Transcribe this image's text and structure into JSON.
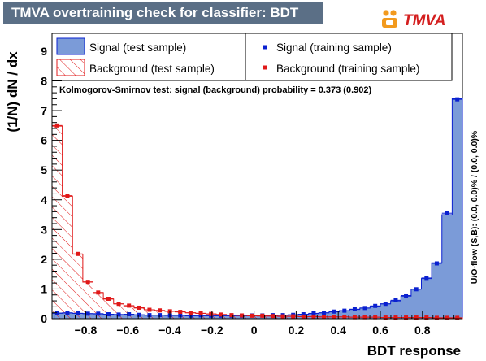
{
  "header": {
    "title": "TMVA overtraining check for classifier: BDT",
    "logo_text": "TMVA"
  },
  "legend": {
    "signal_test": "Signal (test sample)",
    "background_test": "Background (test sample)",
    "signal_train": "Signal (training sample)",
    "background_train": "Background (training sample)"
  },
  "ks_text": "Kolmogorov-Smirnov test: signal (background) probability = 0.373 (0.902)",
  "overflow_text": "U/O-flow (S,B): (0.0, 0.0)% / (0.0, 0.0)%",
  "colors": {
    "signal_fill": "#7b9bd8",
    "signal_line": "#0a20d0",
    "background": "#e01818",
    "title_bg": "#5b6f86"
  },
  "chart_data": {
    "type": "bar",
    "xlabel": "BDT response",
    "ylabel": "(1/N) dN  /  dx",
    "xlim": [
      -0.96,
      0.99
    ],
    "ylim": [
      0,
      9.6
    ],
    "x_ticks": [
      -0.8,
      -0.6,
      -0.4,
      -0.2,
      0,
      0.2,
      0.4,
      0.6,
      0.8
    ],
    "x_tick_labels": [
      "−0.8",
      "−0.6",
      "−0.4",
      "−0.2",
      "0",
      "0.2",
      "0.4",
      "0.6",
      "0.8"
    ],
    "y_ticks": [
      0,
      1,
      2,
      3,
      4,
      5,
      6,
      7,
      8,
      9
    ],
    "n_bins": 40,
    "series": [
      {
        "name": "Signal (test sample)",
        "style": "filled",
        "values": [
          0.18,
          0.19,
          0.18,
          0.17,
          0.16,
          0.15,
          0.14,
          0.14,
          0.13,
          0.12,
          0.12,
          0.11,
          0.11,
          0.1,
          0.1,
          0.1,
          0.1,
          0.1,
          0.1,
          0.1,
          0.11,
          0.11,
          0.12,
          0.13,
          0.15,
          0.17,
          0.2,
          0.23,
          0.27,
          0.31,
          0.36,
          0.42,
          0.5,
          0.6,
          0.76,
          1.0,
          1.35,
          1.88,
          3.5,
          7.4
        ]
      },
      {
        "name": "Background (test sample)",
        "style": "hatched",
        "values": [
          6.48,
          4.12,
          2.17,
          1.23,
          0.88,
          0.66,
          0.5,
          0.43,
          0.36,
          0.3,
          0.27,
          0.25,
          0.23,
          0.2,
          0.18,
          0.16,
          0.14,
          0.12,
          0.11,
          0.1,
          0.09,
          0.09,
          0.08,
          0.08,
          0.07,
          0.07,
          0.06,
          0.06,
          0.06,
          0.05,
          0.05,
          0.05,
          0.04,
          0.04,
          0.04,
          0.04,
          0.04,
          0.03,
          0.03,
          0.03
        ]
      },
      {
        "name": "Signal (training sample)",
        "style": "points",
        "values": [
          0.19,
          0.2,
          0.18,
          0.17,
          0.17,
          0.15,
          0.14,
          0.15,
          0.13,
          0.12,
          0.12,
          0.11,
          0.11,
          0.1,
          0.11,
          0.1,
          0.1,
          0.1,
          0.1,
          0.11,
          0.11,
          0.12,
          0.12,
          0.13,
          0.15,
          0.18,
          0.2,
          0.24,
          0.27,
          0.32,
          0.36,
          0.43,
          0.5,
          0.62,
          0.78,
          0.99,
          1.37,
          1.86,
          3.55,
          7.38
        ]
      },
      {
        "name": "Background (training sample)",
        "style": "points",
        "values": [
          6.5,
          4.14,
          2.18,
          1.24,
          0.88,
          0.67,
          0.5,
          0.44,
          0.37,
          0.3,
          0.28,
          0.25,
          0.23,
          0.2,
          0.18,
          0.16,
          0.14,
          0.12,
          0.11,
          0.1,
          0.1,
          0.09,
          0.08,
          0.08,
          0.07,
          0.07,
          0.06,
          0.06,
          0.06,
          0.05,
          0.05,
          0.05,
          0.04,
          0.04,
          0.04,
          0.04,
          0.04,
          0.03,
          0.03,
          0.03
        ]
      }
    ]
  }
}
